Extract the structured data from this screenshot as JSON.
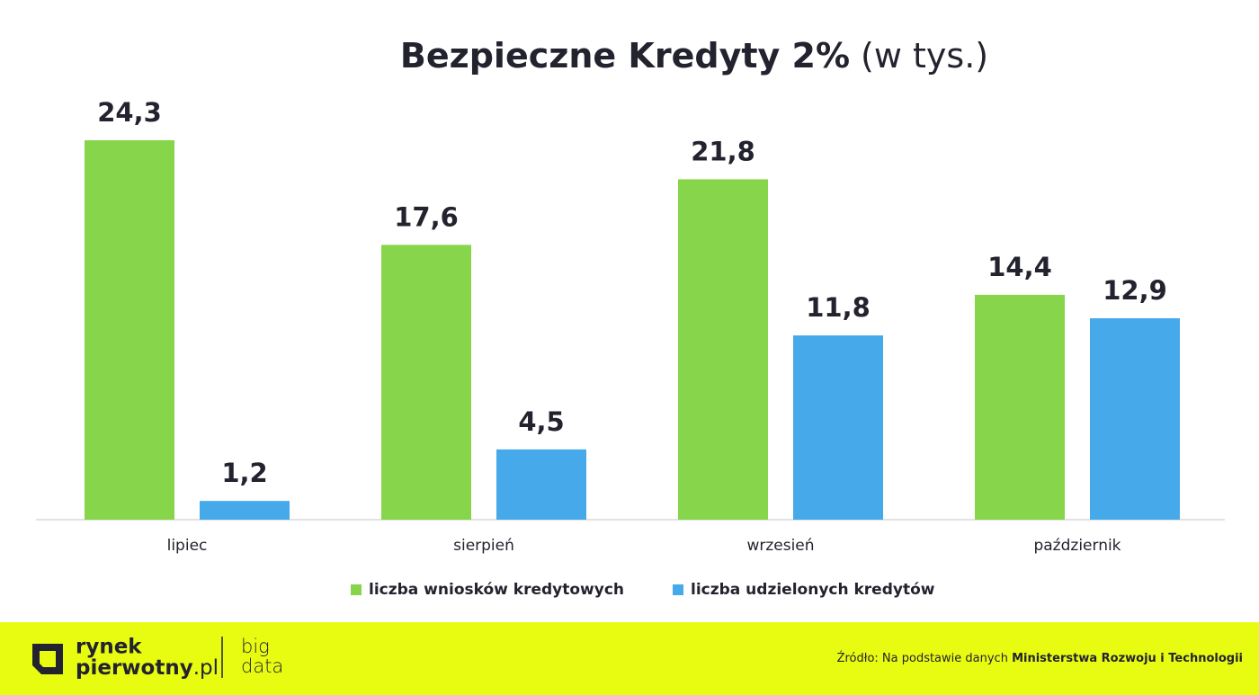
{
  "chart_data": {
    "type": "bar",
    "title": "Bezpieczne Kredyty 2%",
    "title_unit": "(w tys.)",
    "categories": [
      "lipiec",
      "sierpień",
      "wrzesień",
      "październik"
    ],
    "series": [
      {
        "name": "liczba wniosków kredytowych",
        "color": "#87d54b",
        "values": [
          24.3,
          17.6,
          21.8,
          14.4
        ],
        "value_labels": [
          "24,3",
          "17,6",
          "21,8",
          "14,4"
        ]
      },
      {
        "name": "liczba udzielonych kredytów",
        "color": "#46a9ea",
        "values": [
          1.2,
          4.5,
          11.8,
          12.9
        ],
        "value_labels": [
          "1,2",
          "4,5",
          "11,8",
          "12,9"
        ]
      }
    ],
    "ylim": [
      0,
      30
    ],
    "legend": "bottom"
  },
  "footer": {
    "logo_line1": "rynek",
    "logo_line2": "pierwotny",
    "logo_domain": ".pl",
    "partner_line1": "big",
    "partner_line2": "data",
    "source_prefix": "Źródło: Na podstawie danych ",
    "source_name": "Ministerstwa Rozwoju i Technologii"
  }
}
